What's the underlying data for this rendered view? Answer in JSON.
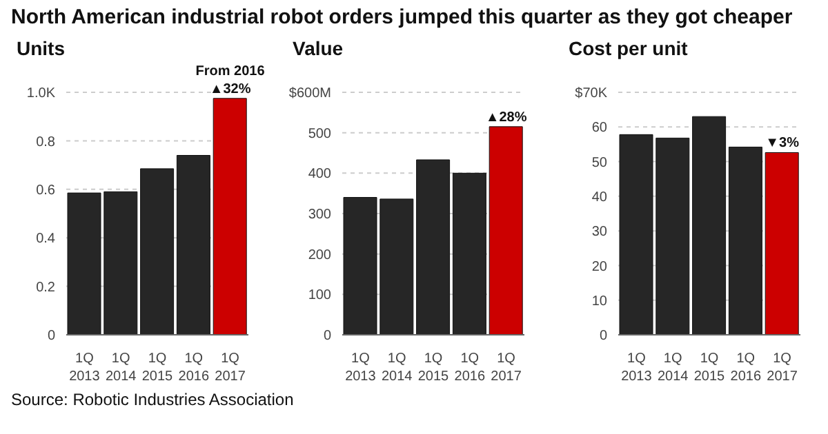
{
  "chart_data": [
    {
      "type": "bar",
      "title": "North American industrial robot orders jumped this quarter as they got cheaper",
      "ylabel": "Units",
      "categories": [
        "1Q 2013",
        "1Q 2014",
        "1Q 2015",
        "1Q 2016",
        "1Q 2017"
      ],
      "values": [
        0.585,
        0.59,
        0.685,
        0.74,
        0.975
      ],
      "colors": [
        "#262626",
        "#262626",
        "#262626",
        "#262626",
        "#cc0000"
      ],
      "ylim": [
        0,
        1.0
      ],
      "yticks": [
        0,
        0.2,
        0.4,
        0.6,
        0.8,
        {
          "value": 1.0,
          "label": "1.0K"
        }
      ],
      "grid": "y",
      "annotations": [
        {
          "text": "▲32%",
          "x": "1Q 2017",
          "y": 0.975
        },
        {
          "text": "From 2016",
          "x": "1Q 2017",
          "y": 0.975
        },
        "Source: Robotic Industries Association"
      ]
    },
    {
      "type": "bar",
      "ylabel": "Value",
      "categories": [
        "1Q 2013",
        "1Q 2014",
        "1Q 2015",
        "1Q 2016",
        "1Q 2017"
      ],
      "values": [
        340,
        336,
        433,
        400,
        515
      ],
      "colors": [
        "#262626",
        "#262626",
        "#262626",
        "#262626",
        "#cc0000"
      ],
      "ylim": [
        0,
        600
      ],
      "yticks": [
        0,
        100,
        200,
        300,
        400,
        500,
        {
          "value": 600,
          "label": "$600M"
        }
      ],
      "grid": "y",
      "annotations": [
        {
          "text": "▲28%",
          "x": "1Q 2017",
          "y": 515
        }
      ]
    },
    {
      "type": "bar",
      "ylabel": "Cost per unit",
      "categories": [
        "1Q 2013",
        "1Q 2014",
        "1Q 2015",
        "1Q 2016",
        "1Q 2017"
      ],
      "values": [
        57.8,
        56.8,
        63,
        54.2,
        52.6
      ],
      "colors": [
        "#262626",
        "#262626",
        "#262626",
        "#262626",
        "#cc0000"
      ],
      "ylim": [
        0,
        70
      ],
      "yticks": [
        0,
        10,
        20,
        30,
        40,
        50,
        60,
        {
          "value": 70,
          "label": "$70K"
        }
      ],
      "grid": "y",
      "annotations": [
        {
          "text": "▼3%",
          "x": "1Q 2017",
          "y": 52.6
        }
      ]
    }
  ]
}
